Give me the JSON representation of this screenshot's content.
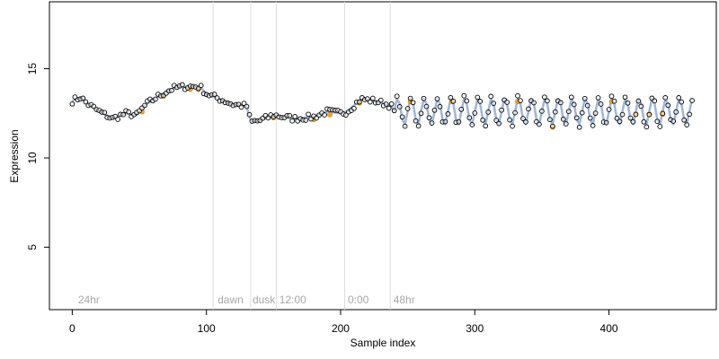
{
  "chart_data": {
    "type": "scatter",
    "xlabel": "Sample index",
    "ylabel": "Expression",
    "xlim": [
      -17,
      480
    ],
    "ylim": [
      1.5,
      18.75
    ],
    "x_ticks": [
      0,
      100,
      200,
      300,
      400
    ],
    "y_ticks": [
      5,
      10,
      15
    ],
    "grid": false,
    "period_boundaries": [
      105,
      133,
      152,
      203,
      237
    ],
    "period_labels": [
      {
        "x": 3,
        "text": "24hr"
      },
      {
        "x": 107,
        "text": "dawn"
      },
      {
        "x": 133,
        "text": "dusk"
      },
      {
        "x": 153,
        "text": "12:00"
      },
      {
        "x": 204,
        "text": "0:00"
      },
      {
        "x": 238,
        "text": "48hr"
      }
    ],
    "series_colors": {
      "points": "#000000",
      "fitted": "#9fb6d6",
      "highlight": "#f0a830"
    },
    "trend_points": [
      [
        0,
        13.2
      ],
      [
        6,
        13.4
      ],
      [
        12,
        13.0
      ],
      [
        20,
        12.6
      ],
      [
        30,
        12.2
      ],
      [
        40,
        12.5
      ],
      [
        48,
        12.4
      ],
      [
        55,
        13.0
      ],
      [
        65,
        13.5
      ],
      [
        75,
        13.9
      ],
      [
        85,
        14.0
      ],
      [
        95,
        14.0
      ],
      [
        100,
        13.6
      ],
      [
        110,
        13.3
      ],
      [
        120,
        13.0
      ],
      [
        130,
        12.9
      ],
      [
        133,
        12.0
      ],
      [
        140,
        12.1
      ],
      [
        150,
        12.4
      ],
      [
        165,
        12.2
      ],
      [
        180,
        12.3
      ],
      [
        190,
        12.6
      ],
      [
        200,
        12.5
      ],
      [
        205,
        12.6
      ],
      [
        215,
        13.3
      ],
      [
        225,
        13.2
      ],
      [
        235,
        13.0
      ],
      [
        240,
        12.8
      ]
    ],
    "oscillation": {
      "x_start": 240,
      "x_end": 462,
      "center": 12.6,
      "amplitude": 0.75,
      "period": 10
    },
    "highlighted_x": [
      52,
      68,
      88,
      94,
      150,
      180,
      192,
      214,
      252,
      283,
      332,
      358,
      402,
      420,
      430,
      440
    ]
  }
}
